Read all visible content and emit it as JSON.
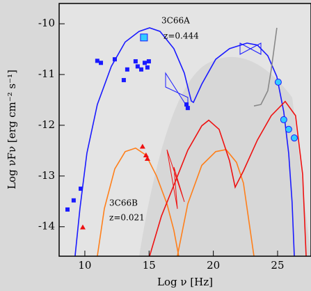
{
  "chart_data": {
    "type": "line",
    "xlabel": "Log ν [Hz]",
    "ylabel": "Log νFν [erg cm⁻² s⁻¹]",
    "xlim": [
      8,
      27.6
    ],
    "ylim": [
      -14.58,
      -9.6
    ],
    "xticks": [
      10,
      15,
      20,
      25
    ],
    "yticks": [
      -10,
      -11,
      -12,
      -13,
      -14
    ],
    "annotations": [
      {
        "text": "3C66A",
        "color": "#1a1aff"
      },
      {
        "text": "z=0.444",
        "color": "#1a1aff"
      },
      {
        "text": "3C66B",
        "color": "#ee1111"
      },
      {
        "text": "z=0.021",
        "color": "#ee1111"
      }
    ],
    "series": [
      {
        "kind": "line",
        "color": "#1a1aff",
        "x": [
          9.24,
          9.62,
          10.16,
          10.97,
          12.06,
          13.14,
          14.22,
          15.04,
          15.85,
          16.93,
          17.74,
          18.28,
          18.45,
          19.1,
          20.18,
          21.26,
          22.62,
          23.43,
          24.24,
          24.94,
          25.48,
          25.86,
          26.13,
          26.3
        ],
        "y": [
          -14.58,
          -13.64,
          -12.55,
          -11.59,
          -10.84,
          -10.36,
          -10.15,
          -10.08,
          -10.15,
          -10.49,
          -10.97,
          -11.52,
          -11.55,
          -11.19,
          -10.7,
          -10.49,
          -10.38,
          -10.42,
          -10.63,
          -11.04,
          -11.73,
          -12.55,
          -13.51,
          -14.58
        ]
      },
      {
        "kind": "line",
        "color": "#ff7f1a",
        "x": [
          10.97,
          11.52,
          12.33,
          13.14,
          13.95,
          14.76,
          15.58,
          16.39,
          16.93,
          17.31
        ],
        "y": [
          -14.58,
          -13.64,
          -12.86,
          -12.52,
          -12.45,
          -12.59,
          -13.0,
          -13.55,
          -14.07,
          -14.58
        ]
      },
      {
        "kind": "line",
        "color": "#ff7f1a",
        "x": [
          17.2,
          18.01,
          19.1,
          20.18,
          20.99,
          21.8,
          22.34,
          23.16
        ],
        "y": [
          -14.58,
          -13.55,
          -12.79,
          -12.52,
          -12.48,
          -12.73,
          -13.14,
          -14.58
        ]
      },
      {
        "kind": "line",
        "color": "#ee1111",
        "x": [
          15.04,
          15.96,
          16.93,
          18.01,
          19.1,
          19.64,
          20.45,
          21.26,
          21.7,
          22.34,
          23.43,
          24.51,
          25.59,
          26.4,
          26.95,
          27.22
        ],
        "y": [
          -14.58,
          -13.79,
          -13.18,
          -12.49,
          -12.01,
          -11.9,
          -12.08,
          -12.7,
          -13.22,
          -12.9,
          -12.29,
          -11.81,
          -11.53,
          -11.81,
          -12.97,
          -14.58
        ]
      },
      {
        "kind": "line",
        "color": "#888888",
        "x": [
          24.94,
          24.51,
          24.24,
          23.7,
          23.16
        ],
        "y": [
          -10.08,
          -10.9,
          -11.32,
          -11.59,
          -11.62
        ]
      },
      {
        "kind": "scatter",
        "marker": "square",
        "color": "#1a1aff",
        "x": [
          10.97,
          11.25,
          12.33,
          13.03,
          13.3,
          13.95,
          14.11,
          14.39,
          14.66,
          14.87,
          14.98,
          17.91,
          18.01,
          8.65,
          9.13,
          9.68
        ],
        "y": [
          -10.73,
          -10.77,
          -10.7,
          -11.11,
          -10.9,
          -10.74,
          -10.84,
          -10.9,
          -10.77,
          -10.86,
          -10.74,
          -11.59,
          -11.66,
          -13.66,
          -13.48,
          -13.25
        ]
      },
      {
        "kind": "scatter",
        "marker": "bigsquare",
        "color": "#33ccff",
        "x": [
          14.6
        ],
        "y": [
          -10.27
        ]
      },
      {
        "kind": "scatter",
        "marker": "triangle",
        "color": "#ee1111",
        "x": [
          9.84,
          14.49,
          14.76,
          14.87
        ],
        "y": [
          -14.01,
          -12.42,
          -12.59,
          -12.66
        ]
      },
      {
        "kind": "scatter",
        "marker": "circle",
        "color": "#33ccff",
        "x": [
          25.05,
          25.48,
          25.86,
          26.3
        ],
        "y": [
          -11.15,
          -11.89,
          -12.08,
          -12.25
        ]
      }
    ]
  }
}
